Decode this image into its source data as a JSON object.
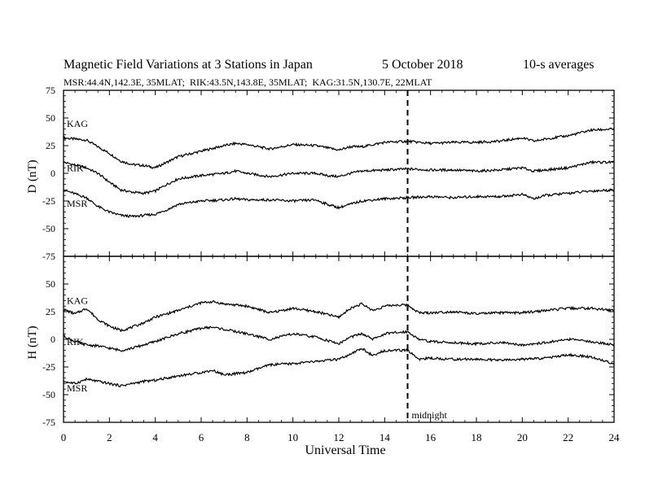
{
  "title": {
    "main": "Magnetic Field Variations at 3 Stations in Japan",
    "date": "5   October 2018",
    "averaging": "10-s averages"
  },
  "subtitle": "MSR:44.4N,142.3E, 35MLAT;  RIK:43.5N,143.8E, 35MLAT;  KAG:31.5N,130.7E, 22MLAT",
  "xlabel": "Universal Time",
  "annotation": "midnight",
  "colors": {
    "line": "#000000",
    "background": "#ffffff"
  },
  "chart_data": [
    {
      "type": "line",
      "panel": "D",
      "ylabel": "D (nT)",
      "xlim": [
        0,
        24
      ],
      "ylim": [
        -75,
        75
      ],
      "x_ticks": [
        0,
        2,
        4,
        6,
        8,
        10,
        12,
        14,
        16,
        18,
        20,
        22,
        24
      ],
      "y_ticks": [
        -75,
        -50,
        -25,
        0,
        25,
        50,
        75
      ],
      "vline_x": 15,
      "series": [
        {
          "name": "KAG",
          "x": [
            0,
            1,
            1.5,
            2,
            2.5,
            3,
            3.5,
            4,
            4.5,
            5,
            6,
            7,
            7.5,
            8,
            9,
            10,
            11,
            11.5,
            12,
            12.5,
            13,
            14,
            15,
            16,
            17,
            18,
            19,
            20,
            20.5,
            21,
            22,
            23,
            24
          ],
          "y": [
            32,
            30,
            24,
            18,
            11,
            8,
            7,
            5,
            10,
            15,
            20,
            25,
            27,
            26,
            22,
            26,
            25,
            23,
            21,
            24,
            24,
            28,
            29,
            27,
            28,
            28,
            29,
            32,
            29,
            31,
            34,
            39,
            40
          ]
        },
        {
          "name": "RIK",
          "x": [
            0,
            1,
            1.5,
            2,
            2.5,
            3,
            3.5,
            4,
            4.5,
            5,
            6,
            7,
            7.5,
            8,
            9,
            10,
            11,
            11.5,
            12,
            12.5,
            13,
            14,
            15,
            16,
            17,
            18,
            19,
            20,
            20.5,
            21,
            22,
            23,
            24
          ],
          "y": [
            10,
            5,
            0,
            -8,
            -15,
            -17,
            -18,
            -16,
            -10,
            -5,
            -2,
            0,
            2,
            0,
            -3,
            0,
            0,
            -2,
            -3,
            0,
            2,
            3,
            4,
            3,
            3,
            2,
            3,
            5,
            2,
            3,
            5,
            10,
            10
          ]
        },
        {
          "name": "MSR",
          "x": [
            0,
            1,
            1.5,
            2,
            2.5,
            3,
            3.5,
            4,
            4.5,
            5,
            6,
            7,
            7.5,
            8,
            9,
            10,
            11,
            11.5,
            12,
            12.5,
            13,
            14,
            15,
            16,
            17,
            18,
            19,
            20,
            20.5,
            21,
            22,
            23,
            24
          ],
          "y": [
            -15,
            -22,
            -30,
            -35,
            -38,
            -39,
            -38,
            -37,
            -33,
            -28,
            -25,
            -24,
            -23,
            -24,
            -24,
            -25,
            -24,
            -28,
            -31,
            -28,
            -25,
            -23,
            -22,
            -21,
            -22,
            -21,
            -21,
            -19,
            -23,
            -20,
            -18,
            -16,
            -15
          ]
        }
      ]
    },
    {
      "type": "line",
      "panel": "H",
      "ylabel": "H (nT)",
      "xlim": [
        0,
        24
      ],
      "ylim": [
        -75,
        75
      ],
      "x_ticks": [
        0,
        2,
        4,
        6,
        8,
        10,
        12,
        14,
        16,
        18,
        20,
        22,
        24
      ],
      "y_ticks": [
        -75,
        -50,
        -25,
        0,
        25,
        50,
        75
      ],
      "vline_x": 15,
      "series": [
        {
          "name": "KAG",
          "x": [
            0,
            0.5,
            1,
            1.5,
            2,
            2.5,
            3,
            3.5,
            4,
            5,
            6,
            6.5,
            7,
            8,
            9,
            10,
            11,
            12,
            12.5,
            13,
            13.5,
            14,
            14.5,
            15,
            15.5,
            16,
            17,
            18,
            19,
            20,
            21,
            22,
            23,
            24
          ],
          "y": [
            27,
            23,
            28,
            18,
            12,
            8,
            11,
            15,
            20,
            26,
            33,
            34,
            32,
            30,
            24,
            28,
            25,
            20,
            28,
            32,
            26,
            30,
            31,
            31,
            24,
            24,
            25,
            23,
            24,
            24,
            26,
            28,
            28,
            26
          ]
        },
        {
          "name": "RIK",
          "x": [
            0,
            0.5,
            1,
            1.5,
            2,
            2.5,
            3,
            3.5,
            4,
            5,
            6,
            6.5,
            7,
            8,
            9,
            10,
            11,
            12,
            12.5,
            13,
            13.5,
            14,
            14.5,
            15,
            15.5,
            16,
            17,
            18,
            19,
            20,
            21,
            22,
            23,
            24
          ],
          "y": [
            3,
            -2,
            -5,
            -6,
            -8,
            -10,
            -8,
            -5,
            -2,
            5,
            10,
            11,
            9,
            5,
            0,
            5,
            2,
            -4,
            2,
            5,
            0,
            5,
            6,
            7,
            0,
            -2,
            -3,
            -4,
            -3,
            -5,
            -3,
            0,
            -2,
            -5
          ]
        },
        {
          "name": "MSR",
          "x": [
            0,
            0.5,
            1,
            1.5,
            2,
            2.5,
            3,
            3.5,
            4,
            5,
            6,
            6.5,
            7,
            8,
            9,
            10,
            11,
            12,
            12.5,
            13,
            13.5,
            14,
            14.5,
            15,
            15.5,
            16,
            17,
            18,
            19,
            20,
            21,
            22,
            23,
            24
          ],
          "y": [
            -38,
            -40,
            -36,
            -38,
            -40,
            -42,
            -40,
            -38,
            -37,
            -33,
            -30,
            -28,
            -32,
            -30,
            -23,
            -22,
            -20,
            -18,
            -14,
            -8,
            -15,
            -10,
            -10,
            -10,
            -18,
            -17,
            -18,
            -18,
            -19,
            -18,
            -17,
            -14,
            -16,
            -22
          ]
        }
      ]
    }
  ]
}
